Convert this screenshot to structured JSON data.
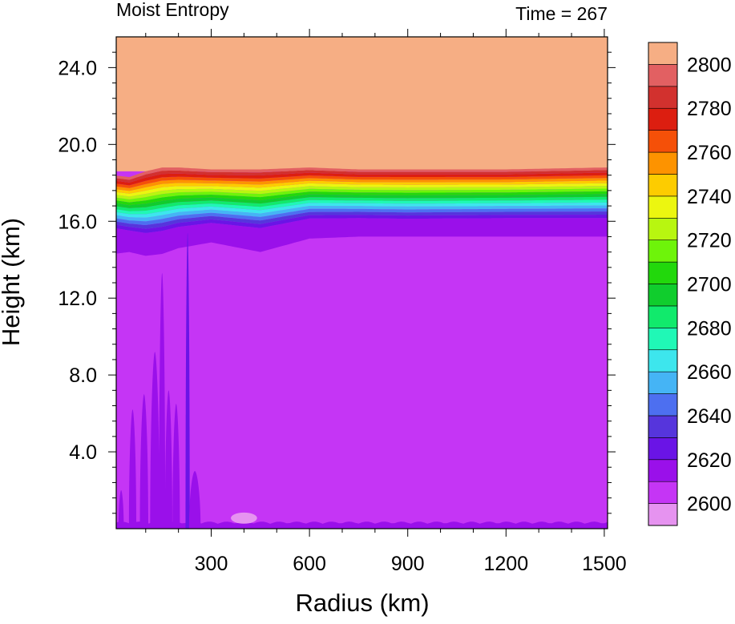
{
  "chart_data": {
    "type": "heatmap",
    "title": "Moist Entropy",
    "subtitle": "Time = 267",
    "xlabel": "Radius (km)",
    "ylabel": "Height (km)",
    "xlim": [
      0,
      1500
    ],
    "ylim": [
      0,
      25.6
    ],
    "x_ticks": [
      300,
      600,
      900,
      1200,
      1500
    ],
    "x_tick_labels": [
      "300",
      "600",
      "900",
      "1200",
      "1500"
    ],
    "y_ticks": [
      4,
      8,
      12,
      16,
      20,
      24
    ],
    "y_tick_labels": [
      "4.0",
      "8.0",
      "12.0",
      "16.0",
      "20.0",
      "24.0"
    ],
    "colorbar": {
      "levels": [
        2600,
        2610,
        2620,
        2630,
        2640,
        2650,
        2660,
        2670,
        2680,
        2690,
        2700,
        2710,
        2720,
        2730,
        2740,
        2750,
        2760,
        2770,
        2780,
        2790,
        2800
      ],
      "labels": [
        "2600",
        "2620",
        "2640",
        "2660",
        "2680",
        "2700",
        "2720",
        "2740",
        "2760",
        "2780",
        "2800"
      ],
      "colors": [
        "#e693f0",
        "#c535f5",
        "#9a10ea",
        "#6a14e6",
        "#5635dc",
        "#4d6ff0",
        "#45b4f5",
        "#3de6ed",
        "#20f8b6",
        "#11ea6c",
        "#10cd2d",
        "#22d80c",
        "#6ef40a",
        "#b8f610",
        "#ecf610",
        "#fdcc00",
        "#fd9300",
        "#f55008",
        "#dc1e10",
        "#d2312e",
        "#e26062",
        "#f6ae84"
      ]
    },
    "regions": [
      {
        "level_index": 21,
        "description_level": ">2800",
        "y_bottom_km": 18.8,
        "y_top_km": 25.6
      },
      {
        "level_index": 1,
        "description_level": "2610-2620",
        "y_bottom_km": 0.3,
        "y_top_km": 15.2
      },
      {
        "level_index": 0,
        "description_level": "<2600",
        "x_range_km": [
          360,
          440
        ],
        "y_range_km": [
          0.3,
          0.8
        ]
      }
    ],
    "transition_band": {
      "x_km": [
        0,
        50,
        100,
        150,
        200,
        300,
        450,
        600,
        750,
        900,
        1200,
        1500
      ],
      "top_km": [
        18.4,
        18.3,
        18.6,
        18.8,
        18.8,
        18.7,
        18.7,
        18.8,
        18.7,
        18.7,
        18.7,
        18.8
      ],
      "bottom_km": [
        15.2,
        15.1,
        15.3,
        15.5,
        15.8,
        15.5,
        15.3,
        15.5,
        15.5,
        15.4,
        15.4,
        15.4
      ],
      "shape_x_km": [
        0,
        50,
        100,
        150,
        200,
        300,
        450,
        600,
        750,
        900,
        1200,
        1500
      ],
      "shape_center_km": [
        17.6,
        17.0,
        16.9,
        17.0,
        17.1,
        17.2,
        17.3,
        17.5,
        17.4,
        17.3,
        17.4,
        17.4
      ],
      "lower_extent_km": [
        14.3,
        14.4,
        14.2,
        14.3,
        14.6,
        14.9,
        14.4,
        15.1,
        15.2,
        15.2,
        15.2,
        15.2
      ]
    },
    "plumes": [
      {
        "x_km": 25,
        "top_km": 2.0,
        "width_km": 10,
        "level_index": 2
      },
      {
        "x_km": 60,
        "top_km": 6.2,
        "width_km": 14,
        "level_index": 2
      },
      {
        "x_km": 95,
        "top_km": 7.0,
        "width_km": 16,
        "level_index": 2
      },
      {
        "x_km": 128,
        "top_km": 9.2,
        "width_km": 18,
        "level_index": 2
      },
      {
        "x_km": 150,
        "top_km": 13.3,
        "width_km": 12,
        "level_index": 2
      },
      {
        "x_km": 170,
        "top_km": 7.2,
        "width_km": 14,
        "level_index": 2
      },
      {
        "x_km": 193,
        "top_km": 6.5,
        "width_km": 14,
        "level_index": 2
      },
      {
        "x_km": 228,
        "top_km": 15.4,
        "width_km": 8,
        "level_index": 3
      },
      {
        "x_km": 250,
        "top_km": 3.0,
        "width_km": 22,
        "level_index": 2
      }
    ],
    "grid": false
  }
}
